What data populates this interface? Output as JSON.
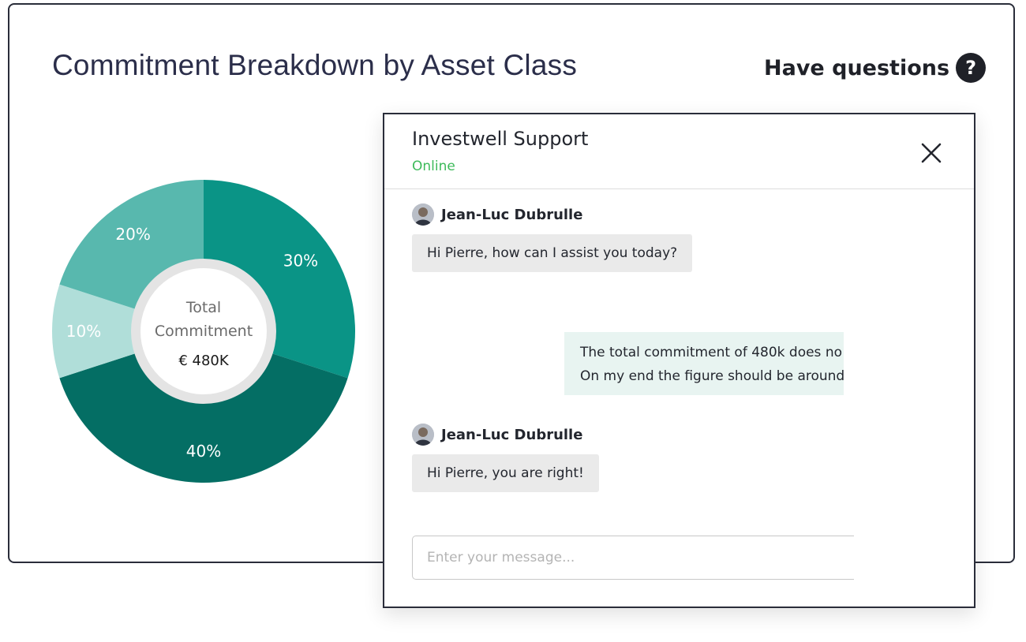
{
  "page": {
    "title": "Commitment Breakdown by Asset Class",
    "help_label": "Have questions",
    "help_icon": "question-circle-icon"
  },
  "chart_data": {
    "type": "pie",
    "variant": "donut",
    "slices": [
      {
        "label": "30%",
        "value": 30,
        "color": "#0a9486"
      },
      {
        "label": "40%",
        "value": 40,
        "color": "#046e64"
      },
      {
        "label": "10%",
        "value": 10,
        "color": "#b0ded9"
      },
      {
        "label": "20%",
        "value": 20,
        "color": "#58b8ae"
      }
    ],
    "center": {
      "line1": "Total",
      "line2": "Commitment",
      "value": "€ 480K"
    }
  },
  "chat": {
    "title": "Investwell Support",
    "status": "Online",
    "status_color": "#3dba5a",
    "close_icon": "close-icon",
    "messages": [
      {
        "sender": "Jean-Luc Dubrulle",
        "text": "Hi Pierre, how can I assist you today?"
      },
      {
        "lines": [
          "The total commitment of 480k does no",
          "On my end the figure should be around"
        ]
      },
      {
        "sender": "Jean-Luc Dubrulle",
        "text": "Hi Pierre, you are right!"
      }
    ],
    "input": {
      "placeholder": "Enter your message...",
      "value": ""
    }
  }
}
